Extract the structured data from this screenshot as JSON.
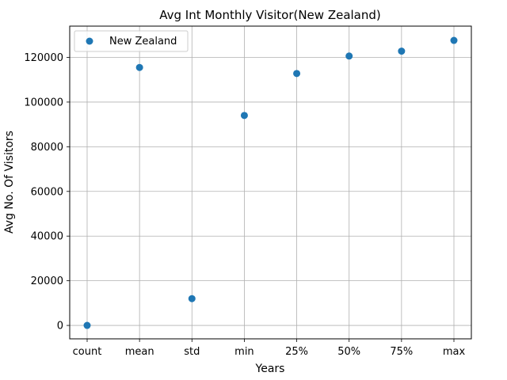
{
  "chart_data": {
    "type": "scatter",
    "title": "Avg Int Monthly Visitor(New Zealand)",
    "xlabel": "Years",
    "ylabel": "Avg No. Of Visitors",
    "categories": [
      "count",
      "mean",
      "std",
      "min",
      "25%",
      "50%",
      "75%",
      "max"
    ],
    "series": [
      {
        "name": "New Zealand",
        "color": "#1f77b4",
        "values": [
          8,
          115500,
          12000,
          94000,
          112800,
          120600,
          122800,
          127600
        ]
      }
    ],
    "ylim": [
      -6000,
      134000
    ],
    "yticks": [
      0,
      20000,
      40000,
      60000,
      80000,
      100000,
      120000
    ],
    "ytick_labels": [
      "0",
      "20000",
      "40000",
      "60000",
      "80000",
      "100000",
      "120000"
    ],
    "grid": true,
    "legend_position": "top-left"
  }
}
